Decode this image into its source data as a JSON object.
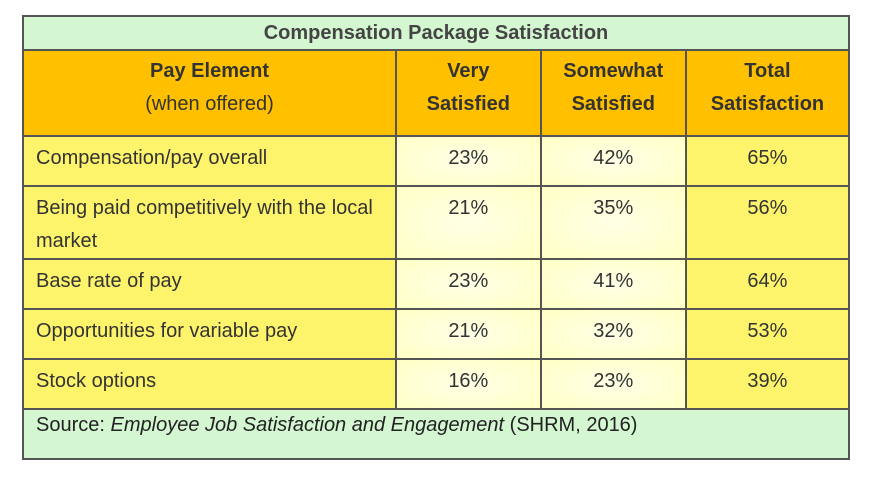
{
  "table": {
    "title": "Compensation Package Satisfaction",
    "header": {
      "pay_element": "Pay Element",
      "pay_element_note": "(when offered)",
      "very_satisfied": [
        "Very",
        "Satisfied"
      ],
      "somewhat_satisfied": [
        "Somewhat",
        "Satisfied"
      ],
      "total_satisfaction": [
        "Total",
        "Satisfaction"
      ]
    },
    "rows": [
      [
        "Compensation/pay overall",
        "23%",
        "42%",
        "65%"
      ],
      [
        "Being paid competitively with the local market",
        "21%",
        "35%",
        "56%"
      ],
      [
        "Base rate of pay",
        "23%",
        "41%",
        "64%"
      ],
      [
        "Opportunities for variable pay",
        "21%",
        "32%",
        "53%"
      ],
      [
        "Stock options",
        "16%",
        "23%",
        "39%"
      ]
    ],
    "source": {
      "prefix": "Source:",
      "title": "Employee Job Satisfaction and Engagement",
      "suffix": "(SHRM, 2016)"
    }
  }
}
